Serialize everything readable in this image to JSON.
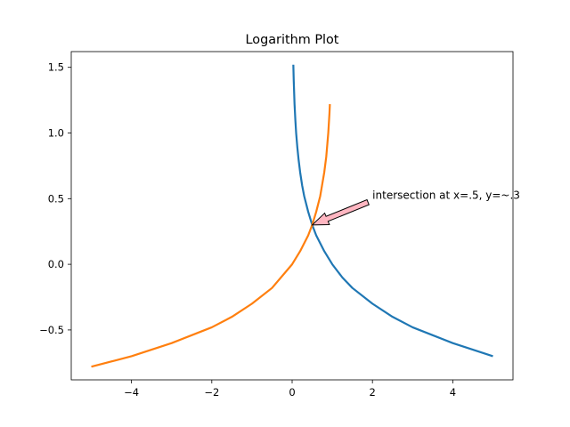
{
  "chart_data": {
    "type": "line",
    "title": "Logarithm Plot",
    "xlabel": "",
    "ylabel": "",
    "xlim": [
      -5.5,
      5.5
    ],
    "ylim": [
      -0.88,
      1.62
    ],
    "grid": false,
    "xticks": [
      -4,
      -2,
      0,
      2,
      4
    ],
    "xtick_labels": [
      "−4",
      "−2",
      "0",
      "2",
      "4"
    ],
    "yticks": [
      -0.5,
      0.0,
      0.5,
      1.0,
      1.5
    ],
    "ytick_labels": [
      "−0.5",
      "0.0",
      "0.5",
      "1.0",
      "1.5"
    ],
    "series": [
      {
        "color": "#1f77b4",
        "x": [
          0.03,
          0.04,
          0.06,
          0.08,
          0.1,
          0.13,
          0.16,
          0.2,
          0.25,
          0.3,
          0.4,
          0.5,
          0.6,
          0.8,
          1.0,
          1.25,
          1.5,
          2.0,
          2.5,
          3.0,
          3.5,
          4.0,
          4.5,
          5.0
        ],
        "y": [
          1.52,
          1.4,
          1.22,
          1.1,
          1.0,
          0.89,
          0.8,
          0.7,
          0.6,
          0.52,
          0.4,
          0.3,
          0.22,
          0.1,
          0.0,
          -0.1,
          -0.18,
          -0.3,
          -0.4,
          -0.48,
          -0.54,
          -0.6,
          -0.65,
          -0.7
        ]
      },
      {
        "color": "#ff7f0e",
        "x": [
          -5.0,
          -4.5,
          -4.0,
          -3.5,
          -3.0,
          -2.5,
          -2.0,
          -1.5,
          -1.0,
          -0.5,
          0.0,
          0.2,
          0.4,
          0.5,
          0.6,
          0.7,
          0.8,
          0.85,
          0.9,
          0.93,
          0.94
        ],
        "y": [
          -0.78,
          -0.74,
          -0.7,
          -0.65,
          -0.6,
          -0.54,
          -0.48,
          -0.4,
          -0.3,
          -0.18,
          0.0,
          0.1,
          0.22,
          0.3,
          0.4,
          0.52,
          0.7,
          0.82,
          1.0,
          1.15,
          1.22
        ]
      }
    ],
    "annotations": [
      {
        "text": "intersection at x=.5, y=~.3",
        "xy": [
          0.5,
          0.3
        ],
        "xytext": [
          2.0,
          0.5
        ],
        "arrow_color": "#ffb6c1"
      }
    ]
  }
}
